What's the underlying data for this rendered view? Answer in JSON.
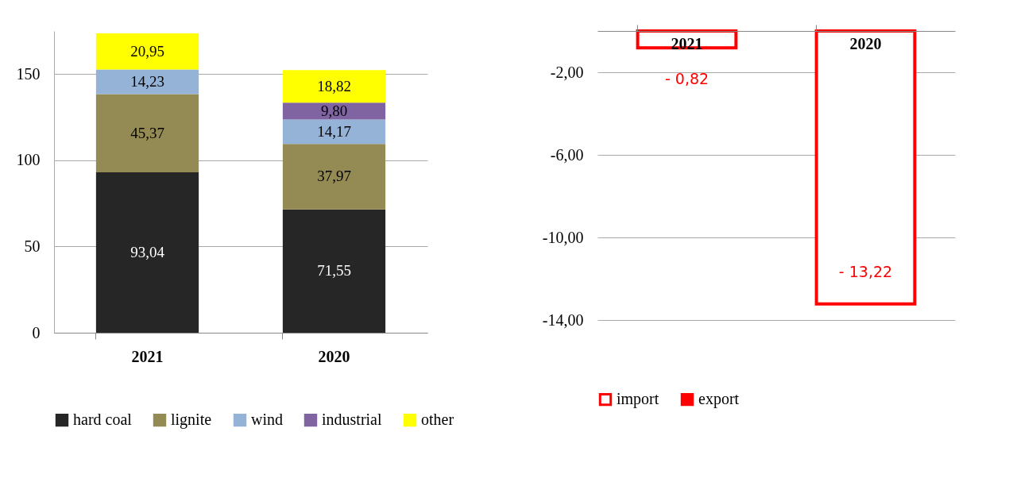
{
  "chart_data": [
    {
      "type": "bar",
      "stacked": true,
      "categories": [
        "2021",
        "2020"
      ],
      "ylim": [
        0,
        175
      ],
      "yticks": [
        0,
        50,
        100,
        150
      ],
      "grid": "y",
      "legend": "bottom",
      "series": [
        {
          "name": "hard coal",
          "color": "#262626",
          "values": [
            93.04,
            71.55
          ],
          "value_labels": [
            "93,04",
            "71,55"
          ]
        },
        {
          "name": "lignite",
          "color": "#948a54",
          "values": [
            45.37,
            37.97
          ],
          "value_labels": [
            "45,37",
            "37,97"
          ]
        },
        {
          "name": "wind",
          "color": "#95b3d7",
          "values": [
            14.23,
            14.17
          ],
          "value_labels": [
            "14,23",
            "14,17"
          ]
        },
        {
          "name": "industrial",
          "color": "#8064a2",
          "values": [
            null,
            9.8
          ],
          "value_labels": [
            null,
            "9,80"
          ]
        },
        {
          "name": "other",
          "color": "#ffff00",
          "values": [
            20.95,
            18.82
          ],
          "value_labels": [
            "20,95",
            "18,82"
          ]
        }
      ]
    },
    {
      "type": "bar",
      "categories": [
        "2021",
        "2020"
      ],
      "ylim": [
        -14,
        0
      ],
      "yticks": [
        {
          "value": -2,
          "label": "-2,00"
        },
        {
          "value": -6,
          "label": "-6,00"
        },
        {
          "value": -10,
          "label": "-10,00"
        },
        {
          "value": -14,
          "label": "-14,00"
        }
      ],
      "grid": "y",
      "legend": "bottom",
      "series": [
        {
          "name": "import",
          "color": "#ff0000",
          "values": [
            -0.82,
            -13.22
          ],
          "value_labels": [
            "- 0,82",
            "- 13,22"
          ]
        },
        {
          "name": "export",
          "color": "#ff0000",
          "values": [
            null,
            null
          ]
        }
      ]
    }
  ]
}
